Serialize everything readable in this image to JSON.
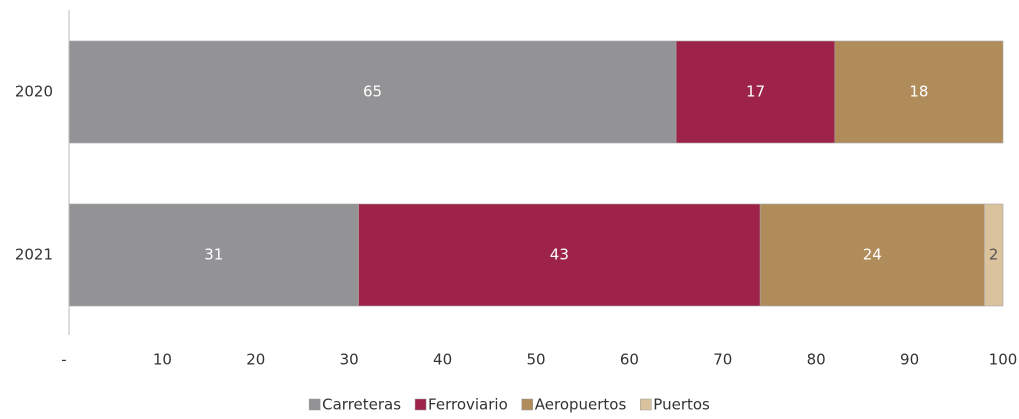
{
  "chart_data": {
    "type": "stacked-barh",
    "categories": [
      "2020",
      "2021"
    ],
    "series": [
      {
        "name": "Carreteras",
        "color": "#939295",
        "values": [
          65,
          31
        ]
      },
      {
        "name": "Ferroviario",
        "color": "#9e2348",
        "values": [
          17,
          43
        ]
      },
      {
        "name": "Aeropuertos",
        "color": "#b08c5b",
        "values": [
          18,
          24
        ]
      },
      {
        "name": "Puertos",
        "color": "#d9c29c",
        "values": [
          null,
          2
        ]
      }
    ],
    "xlim": [
      0,
      100
    ],
    "xticks": [
      {
        "value": 0,
        "label": "-"
      },
      10,
      20,
      30,
      40,
      50,
      60,
      70,
      80,
      90,
      100
    ],
    "legend": "bottom"
  }
}
